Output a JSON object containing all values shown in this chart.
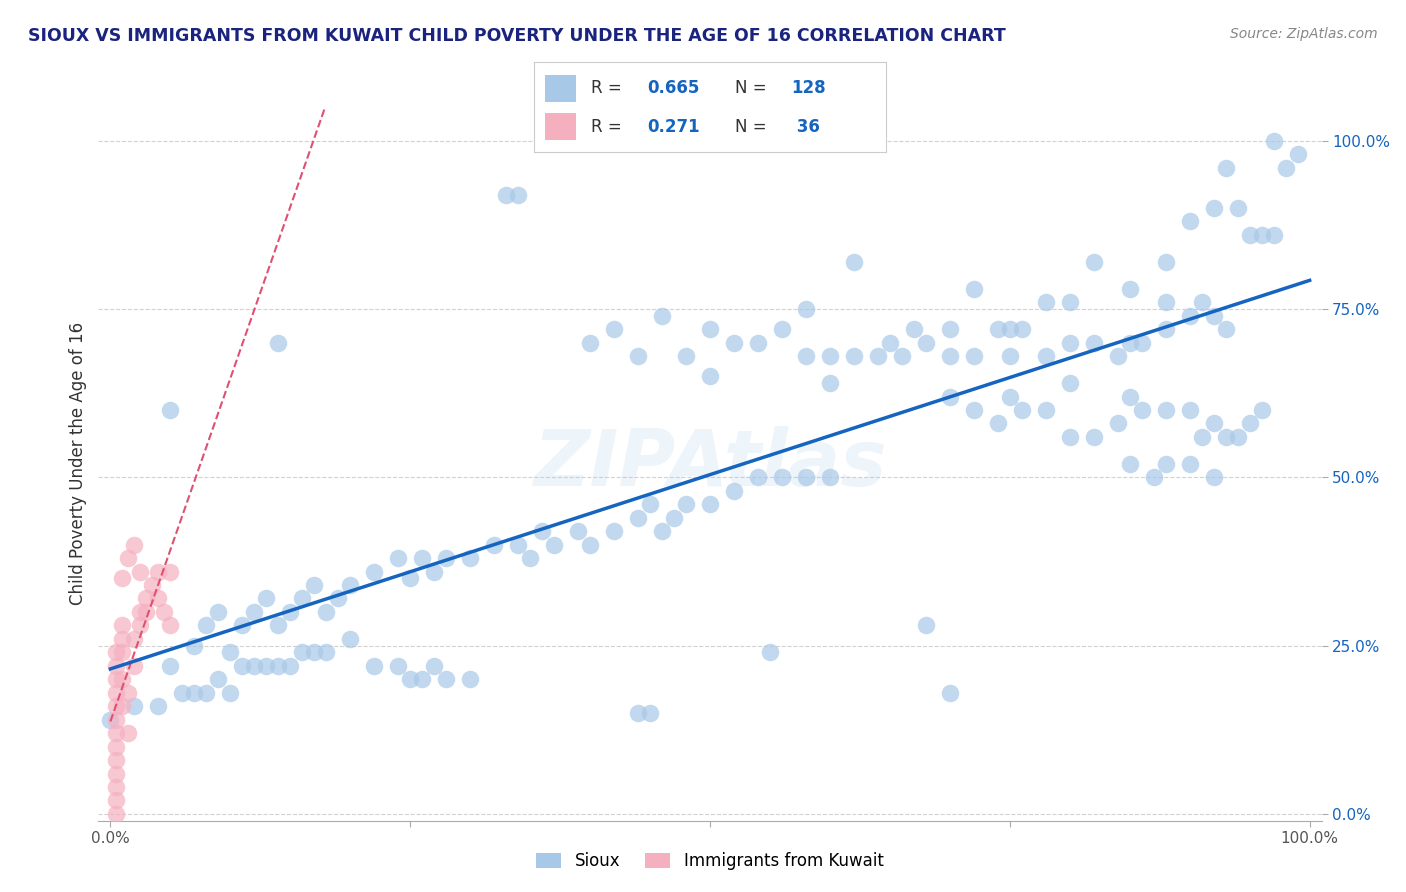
{
  "title": "SIOUX VS IMMIGRANTS FROM KUWAIT CHILD POVERTY UNDER THE AGE OF 16 CORRELATION CHART",
  "source": "Source: ZipAtlas.com",
  "ylabel": "Child Poverty Under the Age of 16",
  "xlim": [
    0,
    1
  ],
  "ylim": [
    0,
    1
  ],
  "xtick_labels": [
    "0.0%",
    "100.0%"
  ],
  "ytick_labels": [
    "0.0%",
    "25.0%",
    "50.0%",
    "75.0%",
    "100.0%"
  ],
  "ytick_vals": [
    0.0,
    0.25,
    0.5,
    0.75,
    1.0
  ],
  "legend_label1": "Sioux",
  "legend_label2": "Immigrants from Kuwait",
  "sioux_color": "#a8c8e8",
  "kuwait_color": "#f5b0c0",
  "sioux_line_color": "#1565c0",
  "kuwait_line_color": "#e05070",
  "title_color": "#1a237e",
  "source_color": "#888888",
  "watermark": "ZIPAtlas",
  "background_color": "#ffffff",
  "sioux_scatter": [
    [
      0.33,
      0.92
    ],
    [
      0.34,
      0.92
    ],
    [
      0.05,
      0.6
    ],
    [
      0.36,
      0.42
    ],
    [
      0.5,
      0.65
    ],
    [
      0.6,
      0.68
    ],
    [
      0.62,
      0.82
    ],
    [
      0.58,
      0.75
    ],
    [
      0.7,
      0.72
    ],
    [
      0.72,
      0.78
    ],
    [
      0.75,
      0.72
    ],
    [
      0.78,
      0.76
    ],
    [
      0.8,
      0.76
    ],
    [
      0.82,
      0.82
    ],
    [
      0.85,
      0.78
    ],
    [
      0.88,
      0.76
    ],
    [
      0.88,
      0.82
    ],
    [
      0.9,
      0.88
    ],
    [
      0.92,
      0.9
    ],
    [
      0.93,
      0.96
    ],
    [
      0.94,
      0.9
    ],
    [
      0.95,
      0.86
    ],
    [
      0.96,
      0.86
    ],
    [
      0.97,
      0.86
    ],
    [
      0.97,
      1.0
    ],
    [
      0.98,
      0.96
    ],
    [
      0.99,
      0.98
    ],
    [
      0.4,
      0.7
    ],
    [
      0.42,
      0.72
    ],
    [
      0.44,
      0.68
    ],
    [
      0.46,
      0.74
    ],
    [
      0.48,
      0.68
    ],
    [
      0.5,
      0.72
    ],
    [
      0.52,
      0.7
    ],
    [
      0.54,
      0.7
    ],
    [
      0.56,
      0.72
    ],
    [
      0.58,
      0.68
    ],
    [
      0.6,
      0.64
    ],
    [
      0.62,
      0.68
    ],
    [
      0.64,
      0.68
    ],
    [
      0.65,
      0.7
    ],
    [
      0.66,
      0.68
    ],
    [
      0.67,
      0.72
    ],
    [
      0.68,
      0.7
    ],
    [
      0.7,
      0.68
    ],
    [
      0.72,
      0.68
    ],
    [
      0.74,
      0.72
    ],
    [
      0.75,
      0.68
    ],
    [
      0.76,
      0.72
    ],
    [
      0.78,
      0.68
    ],
    [
      0.8,
      0.7
    ],
    [
      0.8,
      0.64
    ],
    [
      0.82,
      0.7
    ],
    [
      0.84,
      0.68
    ],
    [
      0.85,
      0.7
    ],
    [
      0.86,
      0.7
    ],
    [
      0.88,
      0.72
    ],
    [
      0.9,
      0.74
    ],
    [
      0.91,
      0.76
    ],
    [
      0.92,
      0.74
    ],
    [
      0.93,
      0.72
    ],
    [
      0.7,
      0.62
    ],
    [
      0.72,
      0.6
    ],
    [
      0.74,
      0.58
    ],
    [
      0.75,
      0.62
    ],
    [
      0.76,
      0.6
    ],
    [
      0.78,
      0.6
    ],
    [
      0.8,
      0.56
    ],
    [
      0.82,
      0.56
    ],
    [
      0.84,
      0.58
    ],
    [
      0.85,
      0.62
    ],
    [
      0.86,
      0.6
    ],
    [
      0.88,
      0.6
    ],
    [
      0.9,
      0.6
    ],
    [
      0.91,
      0.56
    ],
    [
      0.92,
      0.58
    ],
    [
      0.93,
      0.56
    ],
    [
      0.94,
      0.56
    ],
    [
      0.95,
      0.58
    ],
    [
      0.96,
      0.6
    ],
    [
      0.85,
      0.52
    ],
    [
      0.87,
      0.5
    ],
    [
      0.88,
      0.52
    ],
    [
      0.9,
      0.52
    ],
    [
      0.92,
      0.5
    ],
    [
      0.05,
      0.22
    ],
    [
      0.07,
      0.25
    ],
    [
      0.08,
      0.28
    ],
    [
      0.09,
      0.3
    ],
    [
      0.1,
      0.24
    ],
    [
      0.11,
      0.28
    ],
    [
      0.12,
      0.3
    ],
    [
      0.13,
      0.32
    ],
    [
      0.14,
      0.28
    ],
    [
      0.15,
      0.3
    ],
    [
      0.16,
      0.32
    ],
    [
      0.17,
      0.34
    ],
    [
      0.18,
      0.3
    ],
    [
      0.19,
      0.32
    ],
    [
      0.2,
      0.34
    ],
    [
      0.22,
      0.36
    ],
    [
      0.24,
      0.38
    ],
    [
      0.25,
      0.35
    ],
    [
      0.26,
      0.38
    ],
    [
      0.27,
      0.36
    ],
    [
      0.28,
      0.38
    ],
    [
      0.3,
      0.38
    ],
    [
      0.32,
      0.4
    ],
    [
      0.34,
      0.4
    ],
    [
      0.35,
      0.38
    ],
    [
      0.37,
      0.4
    ],
    [
      0.39,
      0.42
    ],
    [
      0.4,
      0.4
    ],
    [
      0.42,
      0.42
    ],
    [
      0.44,
      0.44
    ],
    [
      0.45,
      0.46
    ],
    [
      0.46,
      0.42
    ],
    [
      0.47,
      0.44
    ],
    [
      0.48,
      0.46
    ],
    [
      0.5,
      0.46
    ],
    [
      0.52,
      0.48
    ],
    [
      0.54,
      0.5
    ],
    [
      0.56,
      0.5
    ],
    [
      0.58,
      0.5
    ],
    [
      0.6,
      0.5
    ],
    [
      0.0,
      0.14
    ],
    [
      0.02,
      0.16
    ],
    [
      0.04,
      0.16
    ],
    [
      0.06,
      0.18
    ],
    [
      0.07,
      0.18
    ],
    [
      0.08,
      0.18
    ],
    [
      0.09,
      0.2
    ],
    [
      0.1,
      0.18
    ],
    [
      0.11,
      0.22
    ],
    [
      0.12,
      0.22
    ],
    [
      0.13,
      0.22
    ],
    [
      0.14,
      0.22
    ],
    [
      0.15,
      0.22
    ],
    [
      0.16,
      0.24
    ],
    [
      0.17,
      0.24
    ],
    [
      0.18,
      0.24
    ],
    [
      0.2,
      0.26
    ],
    [
      0.22,
      0.22
    ],
    [
      0.24,
      0.22
    ],
    [
      0.25,
      0.2
    ],
    [
      0.26,
      0.2
    ],
    [
      0.27,
      0.22
    ],
    [
      0.28,
      0.2
    ],
    [
      0.3,
      0.2
    ],
    [
      0.55,
      0.24
    ],
    [
      0.68,
      0.28
    ],
    [
      0.44,
      0.15
    ],
    [
      0.45,
      0.15
    ],
    [
      0.7,
      0.18
    ],
    [
      0.14,
      0.7
    ]
  ],
  "kuwait_scatter": [
    [
      0.005,
      0.0
    ],
    [
      0.005,
      0.02
    ],
    [
      0.005,
      0.04
    ],
    [
      0.005,
      0.06
    ],
    [
      0.005,
      0.08
    ],
    [
      0.005,
      0.1
    ],
    [
      0.005,
      0.12
    ],
    [
      0.005,
      0.14
    ],
    [
      0.005,
      0.16
    ],
    [
      0.005,
      0.18
    ],
    [
      0.005,
      0.2
    ],
    [
      0.005,
      0.22
    ],
    [
      0.005,
      0.24
    ],
    [
      0.01,
      0.26
    ],
    [
      0.01,
      0.28
    ],
    [
      0.01,
      0.24
    ],
    [
      0.01,
      0.2
    ],
    [
      0.01,
      0.16
    ],
    [
      0.015,
      0.12
    ],
    [
      0.015,
      0.18
    ],
    [
      0.02,
      0.22
    ],
    [
      0.02,
      0.26
    ],
    [
      0.025,
      0.28
    ],
    [
      0.025,
      0.3
    ],
    [
      0.03,
      0.3
    ],
    [
      0.03,
      0.32
    ],
    [
      0.035,
      0.34
    ],
    [
      0.04,
      0.36
    ],
    [
      0.04,
      0.32
    ],
    [
      0.045,
      0.3
    ],
    [
      0.05,
      0.28
    ],
    [
      0.01,
      0.35
    ],
    [
      0.015,
      0.38
    ],
    [
      0.02,
      0.4
    ],
    [
      0.025,
      0.36
    ],
    [
      0.05,
      0.36
    ]
  ]
}
